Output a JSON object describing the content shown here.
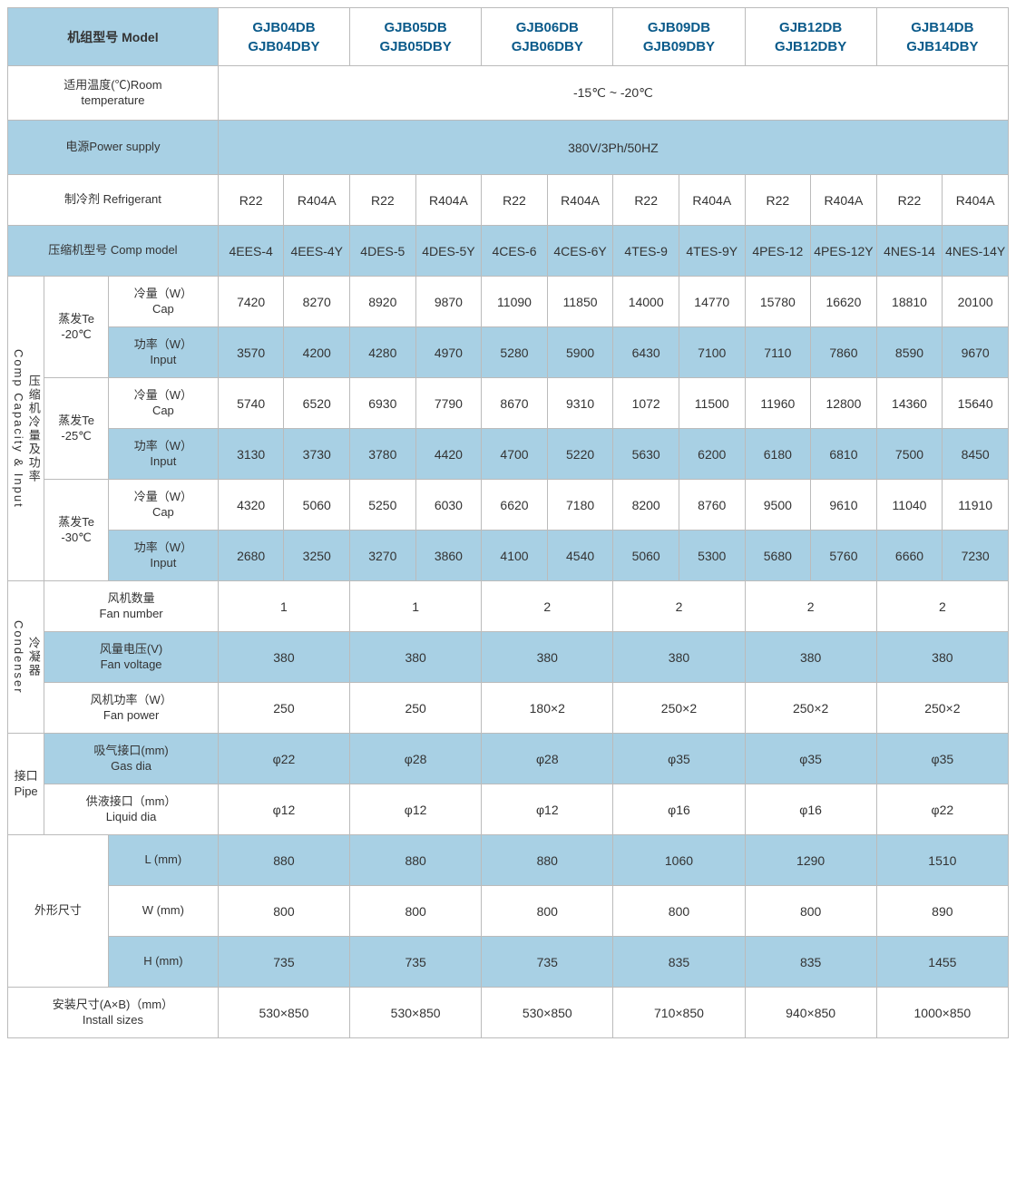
{
  "colors": {
    "light": "#a8d0e4",
    "border": "#bbbbbb",
    "model_text": "#0a5a8a"
  },
  "header": {
    "model_label": "机组型号  Model",
    "models": [
      "GJB04DB\nGJB04DBY",
      "GJB05DB\nGJB05DBY",
      "GJB06DB\nGJB06DBY",
      "GJB09DB\nGJB09DBY",
      "GJB12DB\nGJB12DBY",
      "GJB14DB\nGJB14DBY"
    ]
  },
  "rows": {
    "room_temp": {
      "label": "适用温度(℃)Room\ntemperature",
      "value": "-15℃ ~ -20℃"
    },
    "power_supply": {
      "label": "电源Power supply",
      "value": "380V/3Ph/50HZ"
    },
    "refrigerant": {
      "label": "制冷剂 Refrigerant",
      "values": [
        "R22",
        "R404A",
        "R22",
        "R404A",
        "R22",
        "R404A",
        "R22",
        "R404A",
        "R22",
        "R404A",
        "R22",
        "R404A"
      ]
    },
    "comp_model": {
      "label": "压缩机型号  Comp model",
      "values": [
        "4EES-4",
        "4EES-4Y",
        "4DES-5",
        "4DES-5Y",
        "4CES-6",
        "4CES-6Y",
        "4TES-9",
        "4TES-9Y",
        "4PES-12",
        "4PES-12Y",
        "4NES-14",
        "4NES-14Y"
      ]
    },
    "capacity": {
      "group_label": "压缩机冷量及功率\nComp Capacity & Input",
      "blocks": [
        {
          "te_label": "蒸发Te\n-20℃",
          "cap_label": "冷量（W）\nCap",
          "cap": [
            "7420",
            "8270",
            "8920",
            "9870",
            "11090",
            "11850",
            "14000",
            "14770",
            "15780",
            "16620",
            "18810",
            "20100"
          ],
          "inp_label": "功率（W）\nInput",
          "inp": [
            "3570",
            "4200",
            "4280",
            "4970",
            "5280",
            "5900",
            "6430",
            "7100",
            "7110",
            "7860",
            "8590",
            "9670"
          ]
        },
        {
          "te_label": "蒸发Te\n-25℃",
          "cap_label": "冷量（W）\nCap",
          "cap": [
            "5740",
            "6520",
            "6930",
            "7790",
            "8670",
            "9310",
            "1072",
            "11500",
            "11960",
            "12800",
            "14360",
            "15640"
          ],
          "inp_label": "功率（W）\nInput",
          "inp": [
            "3130",
            "3730",
            "3780",
            "4420",
            "4700",
            "5220",
            "5630",
            "6200",
            "6180",
            "6810",
            "7500",
            "8450"
          ]
        },
        {
          "te_label": "蒸发Te\n-30℃",
          "cap_label": "冷量（W）\nCap",
          "cap": [
            "4320",
            "5060",
            "5250",
            "6030",
            "6620",
            "7180",
            "8200",
            "8760",
            "9500",
            "9610",
            "11040",
            "11910"
          ],
          "inp_label": "功率（W）\nInput",
          "inp": [
            "2680",
            "3250",
            "3270",
            "3860",
            "4100",
            "4540",
            "5060",
            "5300",
            "5680",
            "5760",
            "6660",
            "7230"
          ]
        }
      ]
    },
    "condenser": {
      "group_label": "冷凝器\nCondenser",
      "fan_number": {
        "label": "风机数量\nFan number",
        "values": [
          "1",
          "1",
          "2",
          "2",
          "2",
          "2"
        ]
      },
      "fan_voltage": {
        "label": "风量电压(V)\nFan voltage",
        "values": [
          "380",
          "380",
          "380",
          "380",
          "380",
          "380"
        ]
      },
      "fan_power": {
        "label": "风机功率（W）\nFan power",
        "values": [
          "250",
          "250",
          "180×2",
          "250×2",
          "250×2",
          "250×2"
        ]
      }
    },
    "pipe": {
      "group_label": "接口\nPipe",
      "gas": {
        "label": "吸气接口(mm)\nGas dia",
        "values": [
          "φ22",
          "φ28",
          "φ28",
          "φ35",
          "φ35",
          "φ35"
        ]
      },
      "liquid": {
        "label": "供液接口（mm）\nLiquid dia",
        "values": [
          "φ12",
          "φ12",
          "φ12",
          "φ16",
          "φ16",
          "φ22"
        ]
      }
    },
    "dims": {
      "group_label": "外形尺寸",
      "L": {
        "label": "L (mm)",
        "values": [
          "880",
          "880",
          "880",
          "1060",
          "1290",
          "1510"
        ]
      },
      "W": {
        "label": "W (mm)",
        "values": [
          "800",
          "800",
          "800",
          "800",
          "800",
          "890"
        ]
      },
      "H": {
        "label": "H (mm)",
        "values": [
          "735",
          "735",
          "735",
          "835",
          "835",
          "1455"
        ]
      }
    },
    "install": {
      "label": "安装尺寸(A×B)（mm）\nInstall sizes",
      "values": [
        "530×850",
        "530×850",
        "530×850",
        "710×850",
        "940×850",
        "1000×850"
      ]
    }
  }
}
